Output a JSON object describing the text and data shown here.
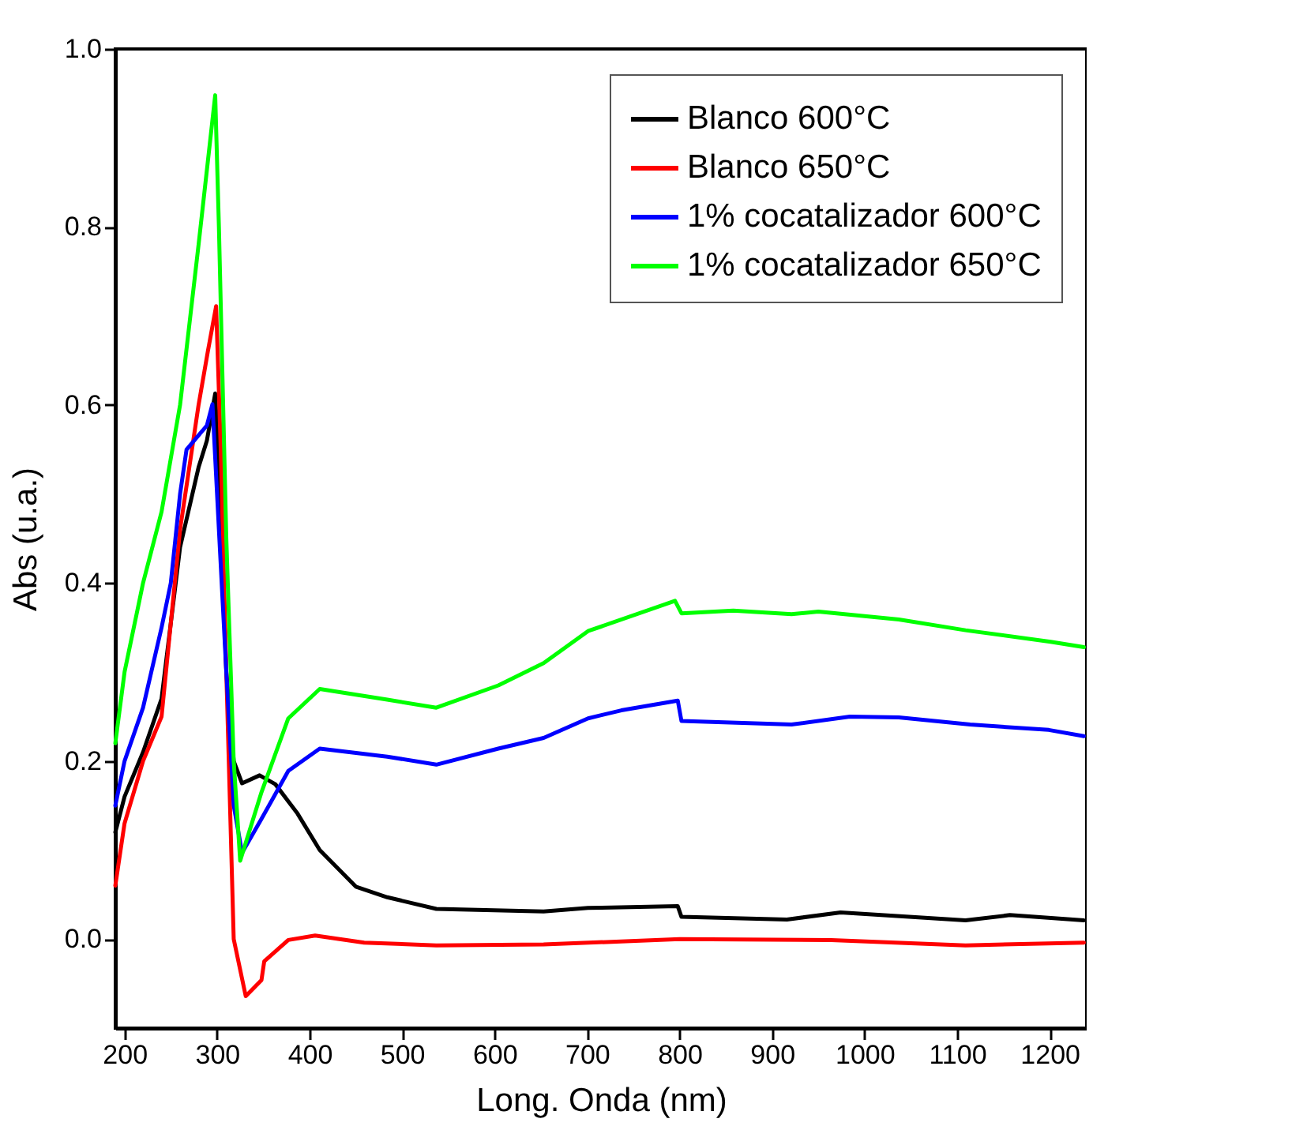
{
  "chart_data": {
    "type": "line",
    "xlabel": "Long. Onda (nm)",
    "ylabel": "Abs (u.a.)",
    "xlim": [
      190,
      1240
    ],
    "ylim": [
      -0.1,
      1.0
    ],
    "xticks": [
      200,
      300,
      400,
      500,
      600,
      700,
      800,
      900,
      1000,
      1100,
      1200
    ],
    "yticks": [
      {
        "value": 0,
        "label": "0.0"
      },
      0.2,
      0.4,
      0.6,
      0.8,
      {
        "value": 1,
        "label": "1.0"
      }
    ],
    "grid": false,
    "legend": "top right",
    "line_style": "solid",
    "marker": "none",
    "series": [
      {
        "name": "Blanco 600°C",
        "color": "#000000",
        "x": [
          190,
          200,
          220,
          240,
          260,
          280,
          289,
          298,
          303,
          310,
          318,
          327,
          346,
          363,
          387,
          411,
          450,
          484,
          537,
          653,
          701,
          798,
          802,
          916,
          974,
          1109,
          1157,
          1237
        ],
        "values": [
          0.12,
          0.16,
          0.21,
          0.27,
          0.44,
          0.53,
          0.56,
          0.613,
          0.5,
          0.3,
          0.2,
          0.175,
          0.184,
          0.174,
          0.141,
          0.1,
          0.059,
          0.047,
          0.034,
          0.031,
          0.035,
          0.037,
          0.025,
          0.022,
          0.03,
          0.021,
          0.027,
          0.021
        ]
      },
      {
        "name": "Blanco 650°C",
        "color": "#ff0000",
        "x": [
          190,
          200,
          220,
          240,
          260,
          280,
          290,
          299,
          304,
          310,
          318,
          331,
          348,
          351,
          377,
          406,
          459,
          537,
          653,
          800,
          964,
          1109,
          1237
        ],
        "values": [
          0.06,
          0.13,
          0.2,
          0.25,
          0.46,
          0.6,
          0.66,
          0.711,
          0.55,
          0.3,
          0.0,
          -0.064,
          -0.046,
          -0.025,
          -0.001,
          0.004,
          -0.004,
          -0.007,
          -0.006,
          0.0,
          -0.001,
          -0.007,
          -0.004
        ]
      },
      {
        "name": "1% cocatalizador 600°C",
        "color": "#0000ff",
        "x": [
          190,
          200,
          220,
          240,
          250,
          260,
          267,
          289,
          295,
          300,
          310,
          318,
          327,
          348,
          377,
          411,
          484,
          537,
          604,
          653,
          701,
          737,
          798,
          802,
          921,
          984,
          1037,
          1114,
          1199,
          1237
        ],
        "values": [
          0.15,
          0.2,
          0.26,
          0.35,
          0.4,
          0.5,
          0.55,
          0.577,
          0.601,
          0.5,
          0.3,
          0.15,
          0.097,
          0.135,
          0.189,
          0.214,
          0.205,
          0.196,
          0.214,
          0.226,
          0.248,
          0.257,
          0.268,
          0.245,
          0.241,
          0.25,
          0.249,
          0.241,
          0.235,
          0.228
        ]
      },
      {
        "name": "1% cocatalizador 650°C",
        "color": "#00ff00",
        "x": [
          190,
          200,
          220,
          240,
          260,
          280,
          298,
          302,
          310,
          318,
          325,
          348,
          377,
          411,
          484,
          537,
          604,
          653,
          701,
          795,
          802,
          858,
          921,
          950,
          1037,
          1109,
          1201,
          1237
        ],
        "values": [
          0.22,
          0.3,
          0.4,
          0.48,
          0.6,
          0.78,
          0.948,
          0.8,
          0.45,
          0.2,
          0.088,
          0.165,
          0.248,
          0.281,
          0.269,
          0.26,
          0.285,
          0.31,
          0.346,
          0.38,
          0.366,
          0.369,
          0.365,
          0.368,
          0.359,
          0.347,
          0.334,
          0.328
        ]
      }
    ]
  }
}
